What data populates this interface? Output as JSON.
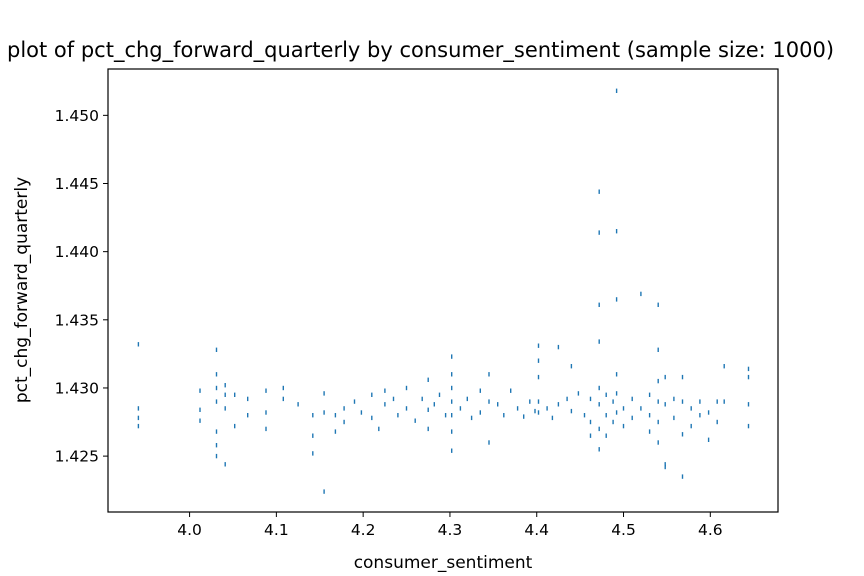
{
  "chart_data": {
    "type": "scatter",
    "title": "plot of pct_chg_forward_quarterly by consumer_sentiment (sample size: 1000)",
    "xlabel": "consumer_sentiment",
    "ylabel": "pct_chg_forward_quarterly",
    "xlim": [
      3.906,
      4.678
    ],
    "ylim": [
      1.4209,
      1.4534
    ],
    "xticks": [
      4.0,
      4.1,
      4.2,
      4.3,
      4.4,
      4.5,
      4.6
    ],
    "xtick_labels": [
      "4.0",
      "4.1",
      "4.2",
      "4.3",
      "4.4",
      "4.5",
      "4.6"
    ],
    "yticks": [
      1.425,
      1.43,
      1.435,
      1.44,
      1.445,
      1.45
    ],
    "ytick_labels": [
      "1.425",
      "1.430",
      "1.435",
      "1.440",
      "1.445",
      "1.450"
    ],
    "grid": false,
    "marker_color": "#1f77b4",
    "series": [
      {
        "points": [
          [
            3.941,
            1.4332
          ],
          [
            3.941,
            1.4285
          ],
          [
            3.941,
            1.4278
          ],
          [
            3.941,
            1.4272
          ],
          [
            4.012,
            1.4298
          ],
          [
            4.012,
            1.4284
          ],
          [
            4.012,
            1.4276
          ],
          [
            4.031,
            1.4328
          ],
          [
            4.031,
            1.431
          ],
          [
            4.031,
            1.43
          ],
          [
            4.031,
            1.429
          ],
          [
            4.031,
            1.4268
          ],
          [
            4.031,
            1.4258
          ],
          [
            4.031,
            1.425
          ],
          [
            4.041,
            1.4302
          ],
          [
            4.041,
            1.4295
          ],
          [
            4.041,
            1.4285
          ],
          [
            4.041,
            1.4244
          ],
          [
            4.052,
            1.4295
          ],
          [
            4.052,
            1.4272
          ],
          [
            4.067,
            1.4292
          ],
          [
            4.067,
            1.428
          ],
          [
            4.088,
            1.4298
          ],
          [
            4.088,
            1.4282
          ],
          [
            4.088,
            1.427
          ],
          [
            4.108,
            1.43
          ],
          [
            4.108,
            1.4292
          ],
          [
            4.125,
            1.4288
          ],
          [
            4.142,
            1.428
          ],
          [
            4.142,
            1.4265
          ],
          [
            4.142,
            1.4252
          ],
          [
            4.155,
            1.4296
          ],
          [
            4.155,
            1.4282
          ],
          [
            4.155,
            1.4224
          ],
          [
            4.168,
            1.428
          ],
          [
            4.168,
            1.4268
          ],
          [
            4.178,
            1.4285
          ],
          [
            4.178,
            1.4275
          ],
          [
            4.19,
            1.429
          ],
          [
            4.198,
            1.4282
          ],
          [
            4.21,
            1.4295
          ],
          [
            4.21,
            1.4278
          ],
          [
            4.218,
            1.427
          ],
          [
            4.225,
            1.4298
          ],
          [
            4.225,
            1.4288
          ],
          [
            4.235,
            1.4292
          ],
          [
            4.24,
            1.428
          ],
          [
            4.25,
            1.43
          ],
          [
            4.25,
            1.4285
          ],
          [
            4.26,
            1.4276
          ],
          [
            4.268,
            1.4292
          ],
          [
            4.275,
            1.4306
          ],
          [
            4.275,
            1.4284
          ],
          [
            4.275,
            1.427
          ],
          [
            4.282,
            1.4288
          ],
          [
            4.288,
            1.4295
          ],
          [
            4.295,
            1.428
          ],
          [
            4.302,
            1.4323
          ],
          [
            4.302,
            1.431
          ],
          [
            4.302,
            1.43
          ],
          [
            4.302,
            1.429
          ],
          [
            4.302,
            1.428
          ],
          [
            4.302,
            1.4268
          ],
          [
            4.302,
            1.4254
          ],
          [
            4.312,
            1.4285
          ],
          [
            4.32,
            1.4292
          ],
          [
            4.325,
            1.4278
          ],
          [
            4.335,
            1.4298
          ],
          [
            4.335,
            1.4282
          ],
          [
            4.345,
            1.431
          ],
          [
            4.345,
            1.429
          ],
          [
            4.345,
            1.426
          ],
          [
            4.355,
            1.4288
          ],
          [
            4.362,
            1.428
          ],
          [
            4.37,
            1.4298
          ],
          [
            4.378,
            1.4285
          ],
          [
            4.385,
            1.4279
          ],
          [
            4.392,
            1.429
          ],
          [
            4.398,
            1.4283
          ],
          [
            4.402,
            1.4331
          ],
          [
            4.402,
            1.432
          ],
          [
            4.402,
            1.4308
          ],
          [
            4.402,
            1.429
          ],
          [
            4.402,
            1.4282
          ],
          [
            4.412,
            1.4285
          ],
          [
            4.418,
            1.4278
          ],
          [
            4.425,
            1.433
          ],
          [
            4.425,
            1.4288
          ],
          [
            4.435,
            1.4292
          ],
          [
            4.44,
            1.4316
          ],
          [
            4.44,
            1.4283
          ],
          [
            4.448,
            1.4296
          ],
          [
            4.455,
            1.428
          ],
          [
            4.462,
            1.4292
          ],
          [
            4.462,
            1.4275
          ],
          [
            4.462,
            1.4265
          ],
          [
            4.472,
            1.4444
          ],
          [
            4.472,
            1.4414
          ],
          [
            4.472,
            1.4361
          ],
          [
            4.472,
            1.4334
          ],
          [
            4.472,
            1.43
          ],
          [
            4.472,
            1.4288
          ],
          [
            4.472,
            1.427
          ],
          [
            4.472,
            1.4255
          ],
          [
            4.48,
            1.4295
          ],
          [
            4.48,
            1.428
          ],
          [
            4.48,
            1.4265
          ],
          [
            4.488,
            1.429
          ],
          [
            4.488,
            1.4275
          ],
          [
            4.492,
            1.4518
          ],
          [
            4.492,
            1.4415
          ],
          [
            4.492,
            1.4365
          ],
          [
            4.492,
            1.431
          ],
          [
            4.492,
            1.4296
          ],
          [
            4.492,
            1.4282
          ],
          [
            4.5,
            1.4285
          ],
          [
            4.5,
            1.4272
          ],
          [
            4.51,
            1.4292
          ],
          [
            4.51,
            1.4278
          ],
          [
            4.52,
            1.4369
          ],
          [
            4.52,
            1.4285
          ],
          [
            4.53,
            1.4295
          ],
          [
            4.53,
            1.428
          ],
          [
            4.53,
            1.4268
          ],
          [
            4.54,
            1.4361
          ],
          [
            4.54,
            1.4328
          ],
          [
            4.54,
            1.4305
          ],
          [
            4.54,
            1.429
          ],
          [
            4.54,
            1.4275
          ],
          [
            4.54,
            1.426
          ],
          [
            4.548,
            1.4308
          ],
          [
            4.548,
            1.4288
          ],
          [
            4.548,
            1.4244
          ],
          [
            4.548,
            1.4242
          ],
          [
            4.558,
            1.4292
          ],
          [
            4.558,
            1.4278
          ],
          [
            4.568,
            1.4308
          ],
          [
            4.568,
            1.429
          ],
          [
            4.568,
            1.4266
          ],
          [
            4.568,
            1.4235
          ],
          [
            4.578,
            1.4285
          ],
          [
            4.578,
            1.4272
          ],
          [
            4.588,
            1.429
          ],
          [
            4.588,
            1.428
          ],
          [
            4.598,
            1.4282
          ],
          [
            4.598,
            1.4262
          ],
          [
            4.608,
            1.429
          ],
          [
            4.608,
            1.4275
          ],
          [
            4.616,
            1.4316
          ],
          [
            4.616,
            1.429
          ],
          [
            4.644,
            1.4314
          ],
          [
            4.644,
            1.4308
          ],
          [
            4.644,
            1.4288
          ],
          [
            4.644,
            1.4272
          ]
        ]
      }
    ]
  }
}
